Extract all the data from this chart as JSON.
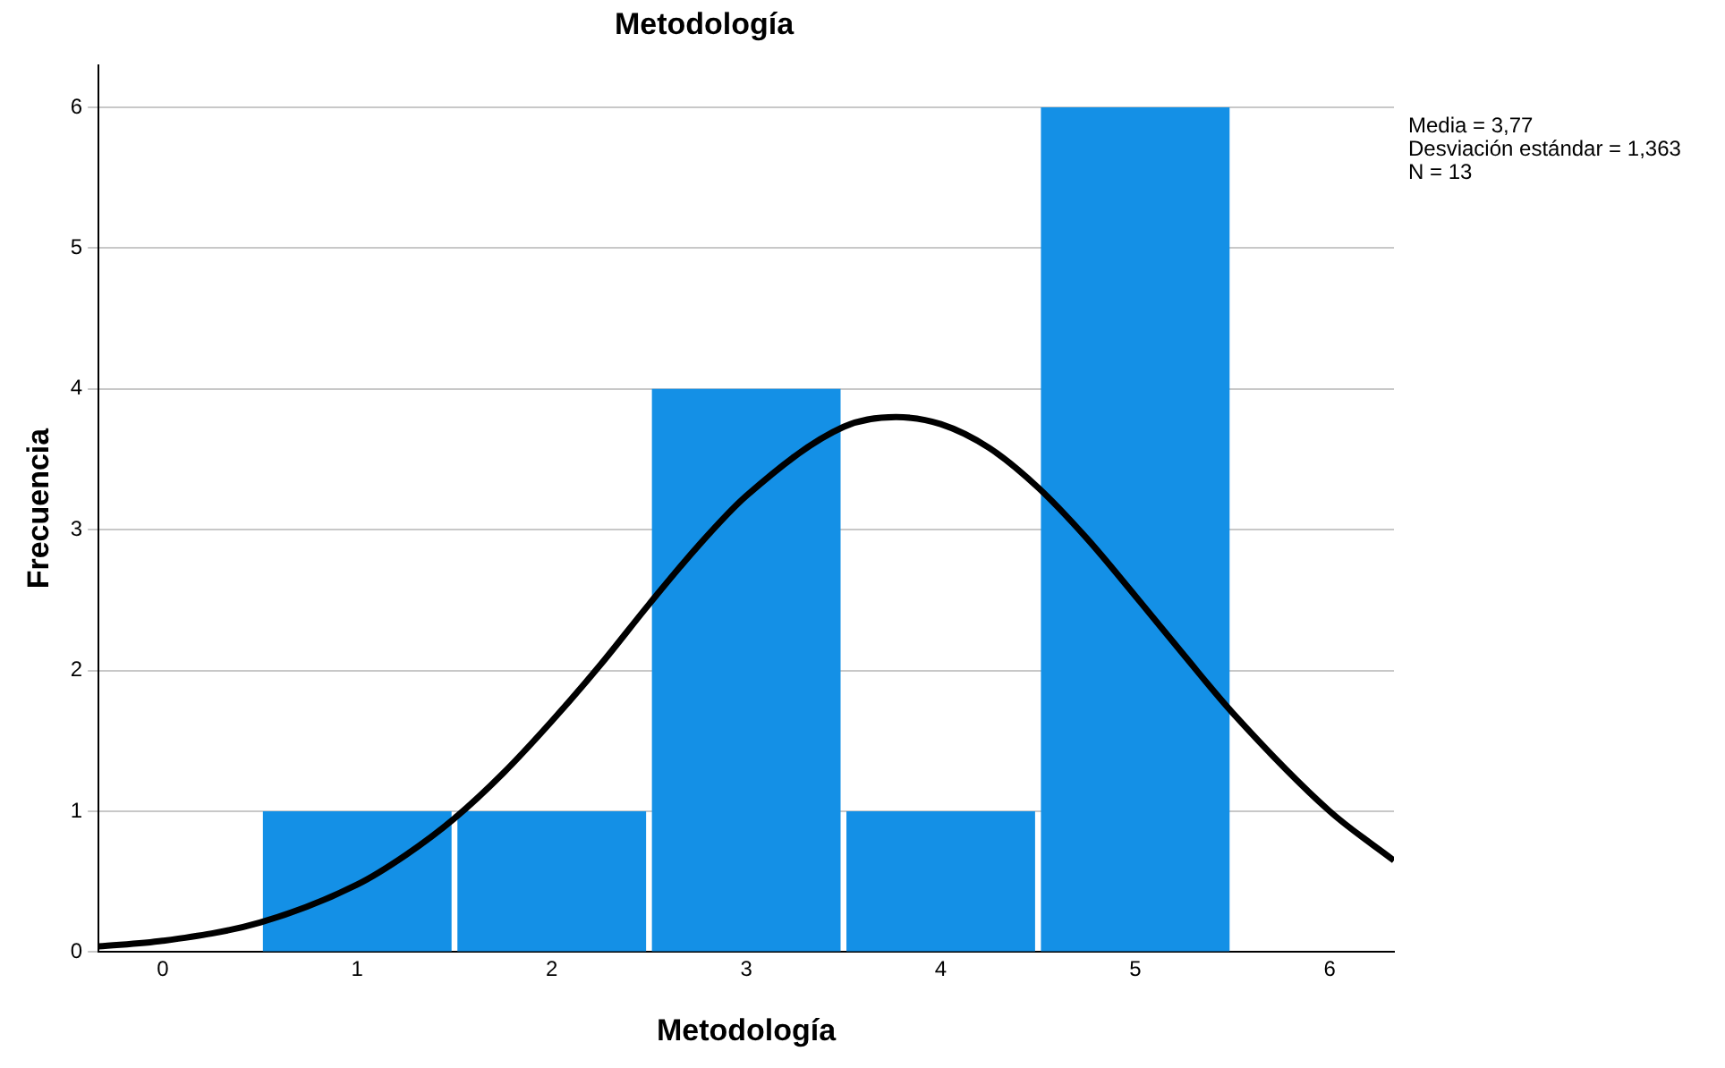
{
  "chart_data": {
    "type": "histogram",
    "title": "Metodología",
    "xlabel": "Metodología",
    "ylabel": "Frecuencia",
    "bins": [
      0.5,
      1.5,
      2.5,
      3.5,
      4.5,
      5.5
    ],
    "values": [
      1,
      1,
      4,
      1,
      6
    ],
    "color": "#1490e6",
    "series": [
      {
        "type": "line",
        "color": "#000000",
        "marker": "none",
        "x": [
          -0.33,
          0,
          0.5,
          1,
          1.25,
          1.5,
          1.75,
          2,
          2.25,
          2.5,
          2.75,
          3,
          3.5,
          3.77,
          4,
          4.25,
          4.5,
          4.75,
          5,
          5.25,
          5.5,
          6,
          6.33
        ],
        "values": [
          0.04,
          0.08,
          0.21,
          0.48,
          0.69,
          0.95,
          1.27,
          1.64,
          2.04,
          2.47,
          2.88,
          3.24,
          3.73,
          3.8,
          3.75,
          3.58,
          3.3,
          2.94,
          2.53,
          2.11,
          1.7,
          1,
          0.65
        ]
      }
    ],
    "xlim": [
      -0.33,
      6.33
    ],
    "ylim": [
      0,
      6.3
    ],
    "xticks": [
      0,
      1,
      2,
      3,
      4,
      5,
      6
    ],
    "yticks": [
      0,
      1,
      2,
      3,
      4,
      5,
      6
    ],
    "grid": "y",
    "annotations": [
      "Media = 3,77",
      "Desviación estándar = 1,363",
      "N = 13"
    ]
  }
}
